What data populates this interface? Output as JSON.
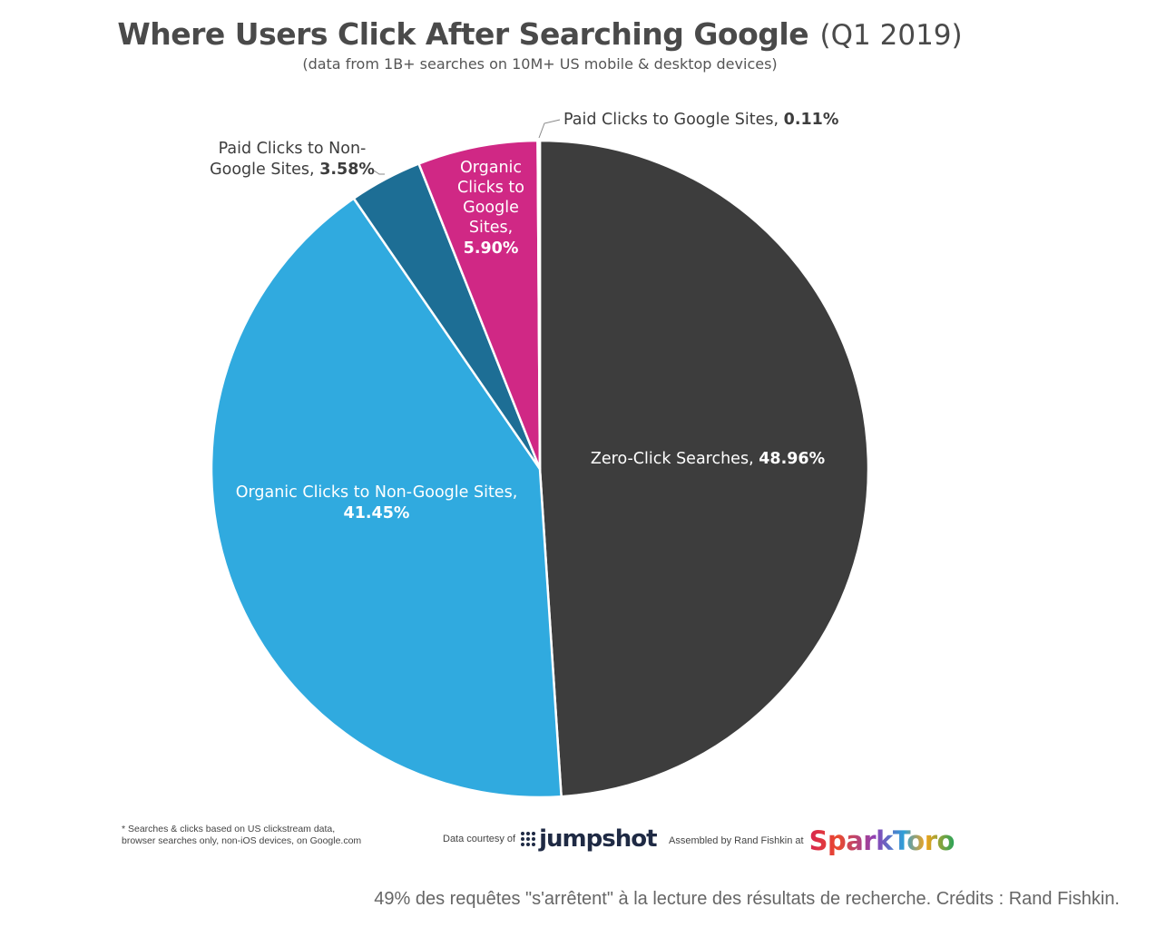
{
  "header": {
    "title": "Where Users Click After Searching Google",
    "title_period": "(Q1 2019)",
    "subtitle": "(data from 1B+ searches on 10M+ US mobile & desktop devices)"
  },
  "chart_data": {
    "type": "pie",
    "title": "Where Users Click After Searching Google (Q1 2019)",
    "subtitle": "(data from 1B+ searches on 10M+ US mobile & desktop devices)",
    "start_angle_deg": 0,
    "direction": "clockwise",
    "slices": [
      {
        "label": "Zero-Click Searches,",
        "value": 48.96,
        "value_text": "48.96%",
        "color": "#3d3d3d",
        "label_color": "#ffffff"
      },
      {
        "label": "Organic Clicks to Non-Google Sites,",
        "value": 41.45,
        "value_text": "41.45%",
        "color": "#30aadf",
        "label_color": "#ffffff"
      },
      {
        "label": "Paid Clicks to Non-Google Sites,",
        "value": 3.58,
        "value_text": "3.58%",
        "color": "#1d6e95",
        "label_color": "#3d3d3d"
      },
      {
        "label": "Organic Clicks to Google Sites,",
        "value": 5.9,
        "value_text": "5.90%",
        "color": "#d02885",
        "label_color": "#ffffff"
      },
      {
        "label": "Paid Clicks to Google Sites,",
        "value": 0.11,
        "value_text": "0.11%",
        "color": "#3d3d3d",
        "label_color": "#3d3d3d"
      }
    ]
  },
  "labels": {
    "zero_click": {
      "text": "Zero-Click Searches,",
      "value": "48.96%"
    },
    "organic_non_google": {
      "line1": "Organic Clicks to Non-Google Sites,",
      "value": "41.45%"
    },
    "paid_non_google": {
      "line1": "Paid Clicks to Non-",
      "line2": "Google Sites,",
      "value": "3.58%"
    },
    "organic_google": {
      "line1": "Organic",
      "line2": "Clicks to",
      "line3": "Google",
      "line4": "Sites,",
      "value": "5.90%"
    },
    "paid_google": {
      "text": "Paid Clicks to Google Sites,",
      "value": "0.11%"
    }
  },
  "footer": {
    "footnote_line1": "* Searches & clicks based on US clickstream data,",
    "footnote_line2": "browser searches only, non-iOS devices, on Google.com",
    "courtesy_text": "Data courtesy of",
    "jumpshot_logo": "jumpshot",
    "assembled_text": "Assembled by Rand Fishkin at",
    "sparktoro_logo": "SparkToro"
  },
  "caption": "49% des requêtes \"s'arrêtent\" à la lecture des résultats de recherche. Crédits : Rand Fishkin."
}
